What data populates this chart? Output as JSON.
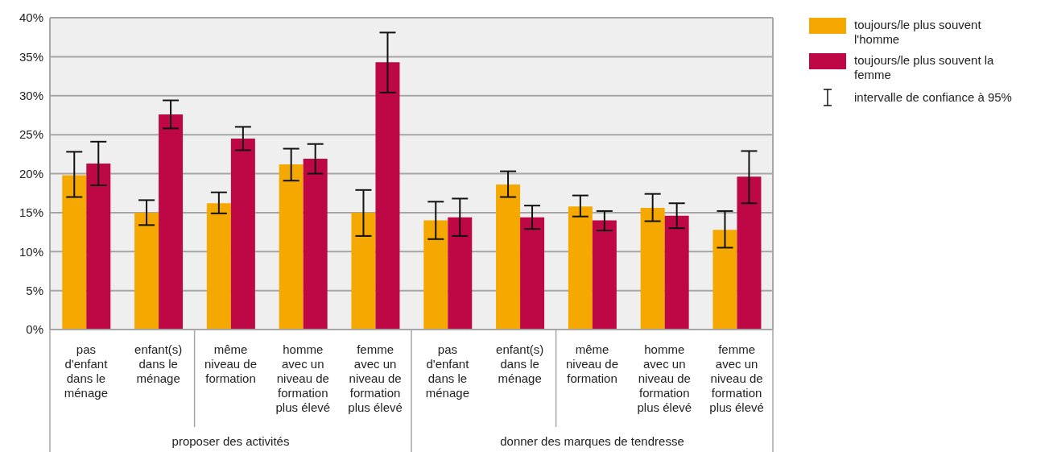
{
  "chart_data": {
    "type": "bar",
    "categories": [
      "pas d'enfant dans le ménage",
      "enfant(s) dans le ménage",
      "même niveau de formation",
      "homme avec un niveau de formation plus élevé",
      "femme avec un niveau de formation plus élevé",
      "pas d'enfant dans le ménage",
      "enfant(s) dans le ménage",
      "même niveau de formation",
      "homme avec un niveau de formation plus élevé",
      "femme avec un niveau de formation plus élevé"
    ],
    "series": [
      {
        "name": "toujours/le plus souvent l'homme",
        "color": "#f5a800",
        "values": [
          19.8,
          15.0,
          16.2,
          21.2,
          15.0,
          14.0,
          18.6,
          15.8,
          15.6,
          12.8
        ],
        "errors": [
          [
            17.0,
            22.8
          ],
          [
            13.4,
            16.6
          ],
          [
            14.9,
            17.6
          ],
          [
            19.1,
            23.2
          ],
          [
            12.0,
            17.9
          ],
          [
            11.6,
            16.4
          ],
          [
            17.0,
            20.3
          ],
          [
            14.5,
            17.2
          ],
          [
            13.9,
            17.4
          ],
          [
            10.5,
            15.2
          ]
        ]
      },
      {
        "name": "toujours/le plus souvent la femme",
        "color": "#be0845",
        "values": [
          21.3,
          27.6,
          24.5,
          21.9,
          34.3,
          14.4,
          14.4,
          14.0,
          14.6,
          19.6
        ],
        "errors": [
          [
            18.5,
            24.1
          ],
          [
            25.8,
            29.4
          ],
          [
            23.0,
            26.0
          ],
          [
            20.0,
            23.8
          ],
          [
            30.4,
            38.1
          ],
          [
            12.0,
            16.8
          ],
          [
            12.9,
            15.9
          ],
          [
            12.7,
            15.2
          ],
          [
            13.0,
            16.2
          ],
          [
            16.2,
            22.9
          ]
        ]
      }
    ],
    "ylim": [
      0,
      40
    ],
    "yticks": [
      {
        "value": 0,
        "label": "0%"
      },
      {
        "value": 5,
        "label": "5%"
      },
      {
        "value": 10,
        "label": "10%"
      },
      {
        "value": 15,
        "label": "15%"
      },
      {
        "value": 20,
        "label": "20%"
      },
      {
        "value": 25,
        "label": "25%"
      },
      {
        "value": 30,
        "label": "30%"
      },
      {
        "value": 35,
        "label": "35%"
      },
      {
        "value": 40,
        "label": "40%"
      }
    ],
    "grid": "y",
    "legend": "top right",
    "annotations": [
      "proposer des activités",
      "donner des marques de tendresse",
      "intervalle de confiance à 95%"
    ]
  }
}
